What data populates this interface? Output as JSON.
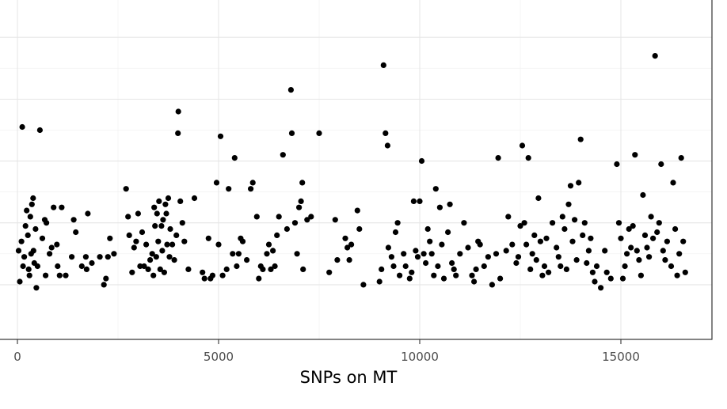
{
  "chart_data": {
    "type": "scatter",
    "xlabel": "SNPs on MT",
    "ylabel": "",
    "xlim": [
      -500,
      17300
    ],
    "ylim": [
      0,
      9.9
    ],
    "x_ticks": [
      0,
      5000,
      10000,
      15000
    ],
    "x_tick_labels": [
      "0",
      "5000",
      "10000",
      "15000"
    ],
    "y_gridlines": [
      1,
      3,
      5,
      7,
      9
    ],
    "grid": true,
    "legend": "none",
    "point_color": "#000000",
    "points": [
      [
        30,
        2.1
      ],
      [
        60,
        1.1
      ],
      [
        100,
        2.4
      ],
      [
        120,
        6.1
      ],
      [
        140,
        1.6
      ],
      [
        170,
        1.9
      ],
      [
        200,
        2.9
      ],
      [
        230,
        3.4
      ],
      [
        260,
        2.6
      ],
      [
        280,
        1.5
      ],
      [
        300,
        1.3
      ],
      [
        320,
        3.2
      ],
      [
        340,
        2.0
      ],
      [
        360,
        3.6
      ],
      [
        390,
        3.8
      ],
      [
        400,
        2.1
      ],
      [
        420,
        1.7
      ],
      [
        450,
        2.8
      ],
      [
        470,
        0.9
      ],
      [
        500,
        1.6
      ],
      [
        560,
        6.0
      ],
      [
        620,
        2.5
      ],
      [
        680,
        3.1
      ],
      [
        700,
        1.3
      ],
      [
        720,
        3.0
      ],
      [
        800,
        2.0
      ],
      [
        850,
        2.2
      ],
      [
        900,
        3.5
      ],
      [
        980,
        2.3
      ],
      [
        1000,
        1.6
      ],
      [
        1050,
        1.3
      ],
      [
        1100,
        3.5
      ],
      [
        1200,
        1.3
      ],
      [
        1350,
        1.9
      ],
      [
        1400,
        3.1
      ],
      [
        1450,
        2.7
      ],
      [
        1600,
        1.6
      ],
      [
        1700,
        1.9
      ],
      [
        1720,
        1.5
      ],
      [
        1750,
        3.3
      ],
      [
        1850,
        1.7
      ],
      [
        2050,
        1.9
      ],
      [
        2150,
        1.0
      ],
      [
        2200,
        1.2
      ],
      [
        2250,
        1.9
      ],
      [
        2300,
        2.5
      ],
      [
        2400,
        2.0
      ],
      [
        2700,
        4.1
      ],
      [
        2750,
        3.2
      ],
      [
        2780,
        2.6
      ],
      [
        2850,
        1.4
      ],
      [
        2900,
        2.2
      ],
      [
        2950,
        2.4
      ],
      [
        3000,
        3.3
      ],
      [
        3050,
        1.6
      ],
      [
        3100,
        2.7
      ],
      [
        3150,
        1.6
      ],
      [
        3200,
        2.3
      ],
      [
        3250,
        1.5
      ],
      [
        3300,
        1.8
      ],
      [
        3350,
        2.0
      ],
      [
        3380,
        1.3
      ],
      [
        3400,
        3.5
      ],
      [
        3420,
        2.9
      ],
      [
        3450,
        1.9
      ],
      [
        3470,
        3.3
      ],
      [
        3500,
        2.4
      ],
      [
        3520,
        3.7
      ],
      [
        3550,
        1.5
      ],
      [
        3580,
        2.9
      ],
      [
        3600,
        2.1
      ],
      [
        3620,
        3.1
      ],
      [
        3650,
        1.4
      ],
      [
        3680,
        3.6
      ],
      [
        3700,
        3.3
      ],
      [
        3720,
        2.3
      ],
      [
        3750,
        3.8
      ],
      [
        3780,
        1.9
      ],
      [
        3800,
        2.8
      ],
      [
        3850,
        2.3
      ],
      [
        3900,
        1.8
      ],
      [
        3950,
        2.6
      ],
      [
        3990,
        5.9
      ],
      [
        4000,
        6.6
      ],
      [
        4050,
        3.7
      ],
      [
        4100,
        3.0
      ],
      [
        4150,
        2.4
      ],
      [
        4250,
        1.5
      ],
      [
        4400,
        3.8
      ],
      [
        4600,
        1.4
      ],
      [
        4650,
        1.2
      ],
      [
        4750,
        2.5
      ],
      [
        4800,
        1.2
      ],
      [
        4850,
        1.3
      ],
      [
        4950,
        4.3
      ],
      [
        5000,
        2.3
      ],
      [
        5050,
        5.8
      ],
      [
        5100,
        1.3
      ],
      [
        5200,
        1.5
      ],
      [
        5250,
        4.1
      ],
      [
        5350,
        2.0
      ],
      [
        5400,
        5.1
      ],
      [
        5450,
        1.6
      ],
      [
        5500,
        2.0
      ],
      [
        5550,
        2.5
      ],
      [
        5600,
        2.4
      ],
      [
        5700,
        1.8
      ],
      [
        5800,
        4.1
      ],
      [
        5850,
        4.3
      ],
      [
        5950,
        3.2
      ],
      [
        6000,
        1.2
      ],
      [
        6050,
        1.6
      ],
      [
        6100,
        1.5
      ],
      [
        6200,
        2.0
      ],
      [
        6250,
        2.3
      ],
      [
        6300,
        1.5
      ],
      [
        6350,
        2.1
      ],
      [
        6400,
        1.6
      ],
      [
        6450,
        2.6
      ],
      [
        6500,
        3.2
      ],
      [
        6600,
        5.2
      ],
      [
        6700,
        2.8
      ],
      [
        6800,
        7.3
      ],
      [
        6820,
        5.9
      ],
      [
        6900,
        3.0
      ],
      [
        6950,
        2.0
      ],
      [
        7000,
        3.5
      ],
      [
        7050,
        3.7
      ],
      [
        7080,
        4.3
      ],
      [
        7100,
        1.5
      ],
      [
        7200,
        3.1
      ],
      [
        7300,
        3.2
      ],
      [
        7500,
        5.9
      ],
      [
        7750,
        1.4
      ],
      [
        7900,
        3.1
      ],
      [
        7950,
        1.8
      ],
      [
        8150,
        2.5
      ],
      [
        8200,
        2.2
      ],
      [
        8250,
        1.8
      ],
      [
        8300,
        2.3
      ],
      [
        8450,
        3.4
      ],
      [
        8500,
        2.8
      ],
      [
        8600,
        1.0
      ],
      [
        9000,
        1.1
      ],
      [
        9050,
        1.5
      ],
      [
        9100,
        8.1
      ],
      [
        9150,
        5.9
      ],
      [
        9200,
        5.5
      ],
      [
        9220,
        2.2
      ],
      [
        9300,
        1.9
      ],
      [
        9350,
        1.6
      ],
      [
        9400,
        2.7
      ],
      [
        9450,
        3.0
      ],
      [
        9500,
        1.3
      ],
      [
        9600,
        2.0
      ],
      [
        9650,
        1.6
      ],
      [
        9750,
        1.2
      ],
      [
        9800,
        1.4
      ],
      [
        9850,
        3.7
      ],
      [
        9900,
        2.1
      ],
      [
        9950,
        1.9
      ],
      [
        10000,
        3.7
      ],
      [
        10050,
        5.0
      ],
      [
        10100,
        2.0
      ],
      [
        10150,
        1.7
      ],
      [
        10200,
        2.8
      ],
      [
        10250,
        2.4
      ],
      [
        10300,
        2.0
      ],
      [
        10350,
        1.3
      ],
      [
        10400,
        4.1
      ],
      [
        10450,
        1.6
      ],
      [
        10500,
        3.5
      ],
      [
        10550,
        2.3
      ],
      [
        10600,
        1.2
      ],
      [
        10700,
        2.7
      ],
      [
        10750,
        3.6
      ],
      [
        10800,
        1.7
      ],
      [
        10850,
        1.5
      ],
      [
        10900,
        1.3
      ],
      [
        11000,
        2.0
      ],
      [
        11100,
        3.0
      ],
      [
        11200,
        2.2
      ],
      [
        11300,
        1.3
      ],
      [
        11350,
        1.1
      ],
      [
        11400,
        1.5
      ],
      [
        11450,
        2.4
      ],
      [
        11500,
        2.3
      ],
      [
        11600,
        1.6
      ],
      [
        11700,
        1.9
      ],
      [
        11800,
        1.0
      ],
      [
        11900,
        2.0
      ],
      [
        11950,
        5.1
      ],
      [
        12000,
        1.2
      ],
      [
        12150,
        2.1
      ],
      [
        12200,
        3.2
      ],
      [
        12300,
        2.3
      ],
      [
        12400,
        1.7
      ],
      [
        12450,
        1.9
      ],
      [
        12500,
        2.9
      ],
      [
        12550,
        5.5
      ],
      [
        12600,
        3.0
      ],
      [
        12650,
        2.3
      ],
      [
        12700,
        5.1
      ],
      [
        12750,
        1.5
      ],
      [
        12800,
        2.0
      ],
      [
        12850,
        2.6
      ],
      [
        12900,
        1.8
      ],
      [
        12950,
        3.8
      ],
      [
        13000,
        2.4
      ],
      [
        13050,
        1.3
      ],
      [
        13100,
        1.6
      ],
      [
        13150,
        2.5
      ],
      [
        13200,
        1.4
      ],
      [
        13300,
        3.0
      ],
      [
        13400,
        2.2
      ],
      [
        13450,
        1.9
      ],
      [
        13500,
        1.6
      ],
      [
        13550,
        3.2
      ],
      [
        13600,
        2.8
      ],
      [
        13650,
        1.5
      ],
      [
        13700,
        3.6
      ],
      [
        13750,
        4.2
      ],
      [
        13800,
        2.4
      ],
      [
        13850,
        3.1
      ],
      [
        13900,
        1.8
      ],
      [
        13950,
        4.3
      ],
      [
        14000,
        5.7
      ],
      [
        14050,
        2.6
      ],
      [
        14100,
        3.0
      ],
      [
        14150,
        1.7
      ],
      [
        14200,
        2.1
      ],
      [
        14250,
        2.5
      ],
      [
        14300,
        1.4
      ],
      [
        14350,
        1.1
      ],
      [
        14400,
        1.6
      ],
      [
        14500,
        0.9
      ],
      [
        14600,
        2.1
      ],
      [
        14650,
        1.4
      ],
      [
        14750,
        1.2
      ],
      [
        14900,
        4.9
      ],
      [
        14950,
        3.0
      ],
      [
        15000,
        2.5
      ],
      [
        15050,
        1.2
      ],
      [
        15100,
        1.6
      ],
      [
        15150,
        2.0
      ],
      [
        15200,
        2.8
      ],
      [
        15250,
        2.2
      ],
      [
        15300,
        2.9
      ],
      [
        15350,
        5.2
      ],
      [
        15400,
        2.1
      ],
      [
        15450,
        1.8
      ],
      [
        15500,
        1.3
      ],
      [
        15550,
        3.9
      ],
      [
        15600,
        2.6
      ],
      [
        15650,
        2.2
      ],
      [
        15700,
        1.9
      ],
      [
        15750,
        3.2
      ],
      [
        15800,
        2.5
      ],
      [
        15850,
        8.4
      ],
      [
        15900,
        2.7
      ],
      [
        15950,
        3.0
      ],
      [
        16000,
        4.9
      ],
      [
        16050,
        2.1
      ],
      [
        16100,
        1.8
      ],
      [
        16150,
        2.4
      ],
      [
        16250,
        1.6
      ],
      [
        16300,
        4.3
      ],
      [
        16350,
        2.8
      ],
      [
        16400,
        1.3
      ],
      [
        16450,
        2.0
      ],
      [
        16500,
        5.1
      ],
      [
        16550,
        2.4
      ],
      [
        16600,
        1.4
      ]
    ]
  }
}
